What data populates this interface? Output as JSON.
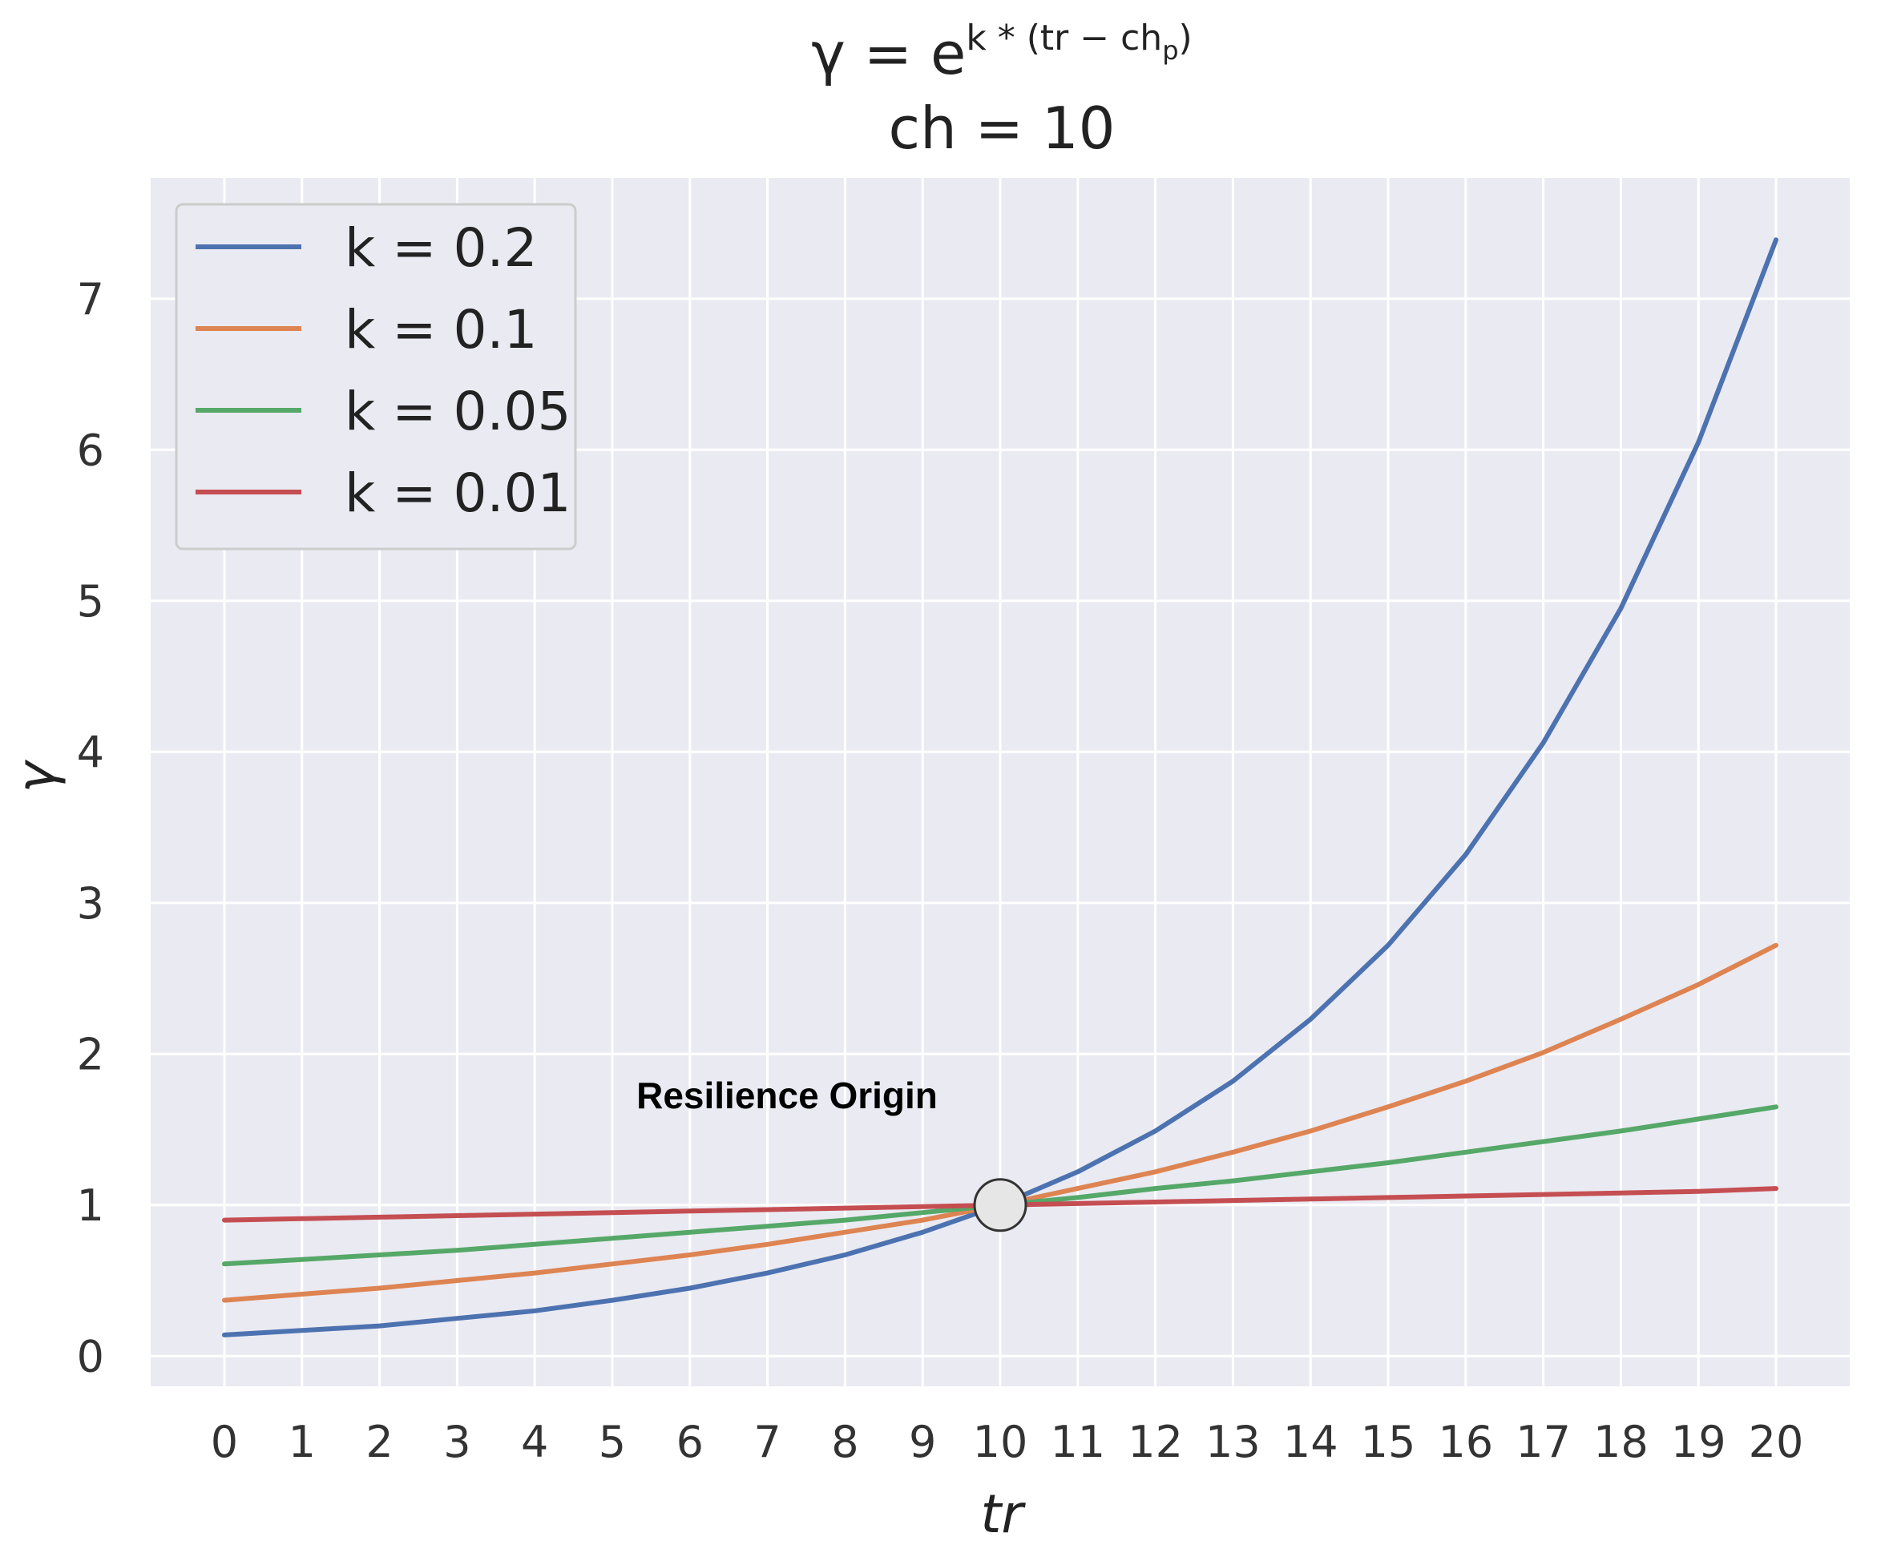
{
  "chart_data": {
    "type": "line",
    "title_line1": "γ = e^{k * (tr − ch_p)}",
    "title_main": "γ = e",
    "title_exponent": "k * (tr − ch",
    "title_exponent_sub": "p",
    "title_exponent_close": ")",
    "title_line2": "ch = 10",
    "xlabel": "tr",
    "ylabel": "γ",
    "xlim": [
      -0.95,
      20.95
    ],
    "ylim": [
      -0.2,
      7.8
    ],
    "x": [
      0,
      1,
      2,
      3,
      4,
      5,
      6,
      7,
      8,
      9,
      10,
      11,
      12,
      13,
      14,
      15,
      16,
      17,
      18,
      19,
      20
    ],
    "x_ticks": [
      "0",
      "1",
      "2",
      "3",
      "4",
      "5",
      "6",
      "7",
      "8",
      "9",
      "10",
      "11",
      "12",
      "13",
      "14",
      "15",
      "16",
      "17",
      "18",
      "19",
      "20"
    ],
    "y_ticks": [
      "0",
      "1",
      "2",
      "3",
      "4",
      "5",
      "6",
      "7"
    ],
    "grid": true,
    "legend_position": "top-left",
    "series": [
      {
        "name": "k = 0.2",
        "k": 0.2,
        "color": "#4c72b0",
        "values": [
          0.14,
          0.17,
          0.2,
          0.25,
          0.3,
          0.37,
          0.45,
          0.55,
          0.67,
          0.82,
          1.0,
          1.22,
          1.49,
          1.82,
          2.23,
          2.72,
          3.32,
          4.06,
          4.95,
          6.05,
          7.39
        ]
      },
      {
        "name": "k = 0.1",
        "k": 0.1,
        "color": "#dd8452",
        "values": [
          0.37,
          0.41,
          0.45,
          0.5,
          0.55,
          0.61,
          0.67,
          0.74,
          0.82,
          0.9,
          1.0,
          1.11,
          1.22,
          1.35,
          1.49,
          1.65,
          1.82,
          2.01,
          2.23,
          2.46,
          2.72
        ]
      },
      {
        "name": "k = 0.05",
        "k": 0.05,
        "color": "#55a868",
        "values": [
          0.61,
          0.64,
          0.67,
          0.7,
          0.74,
          0.78,
          0.82,
          0.86,
          0.9,
          0.95,
          1.0,
          1.05,
          1.11,
          1.16,
          1.22,
          1.28,
          1.35,
          1.42,
          1.49,
          1.57,
          1.65
        ]
      },
      {
        "name": "k = 0.01",
        "k": 0.01,
        "color": "#c44e52",
        "values": [
          0.9,
          0.91,
          0.92,
          0.93,
          0.94,
          0.95,
          0.96,
          0.97,
          0.98,
          0.99,
          1.0,
          1.01,
          1.02,
          1.03,
          1.04,
          1.05,
          1.06,
          1.07,
          1.08,
          1.09,
          1.11
        ]
      }
    ],
    "annotation": {
      "text": "Resilience Origin",
      "x": 10,
      "y": 1
    },
    "colors": {
      "plot_background": "#eaeaf2",
      "grid": "#ffffff",
      "marker_fill": "#e6e6e6",
      "marker_stroke": "#333333"
    }
  }
}
